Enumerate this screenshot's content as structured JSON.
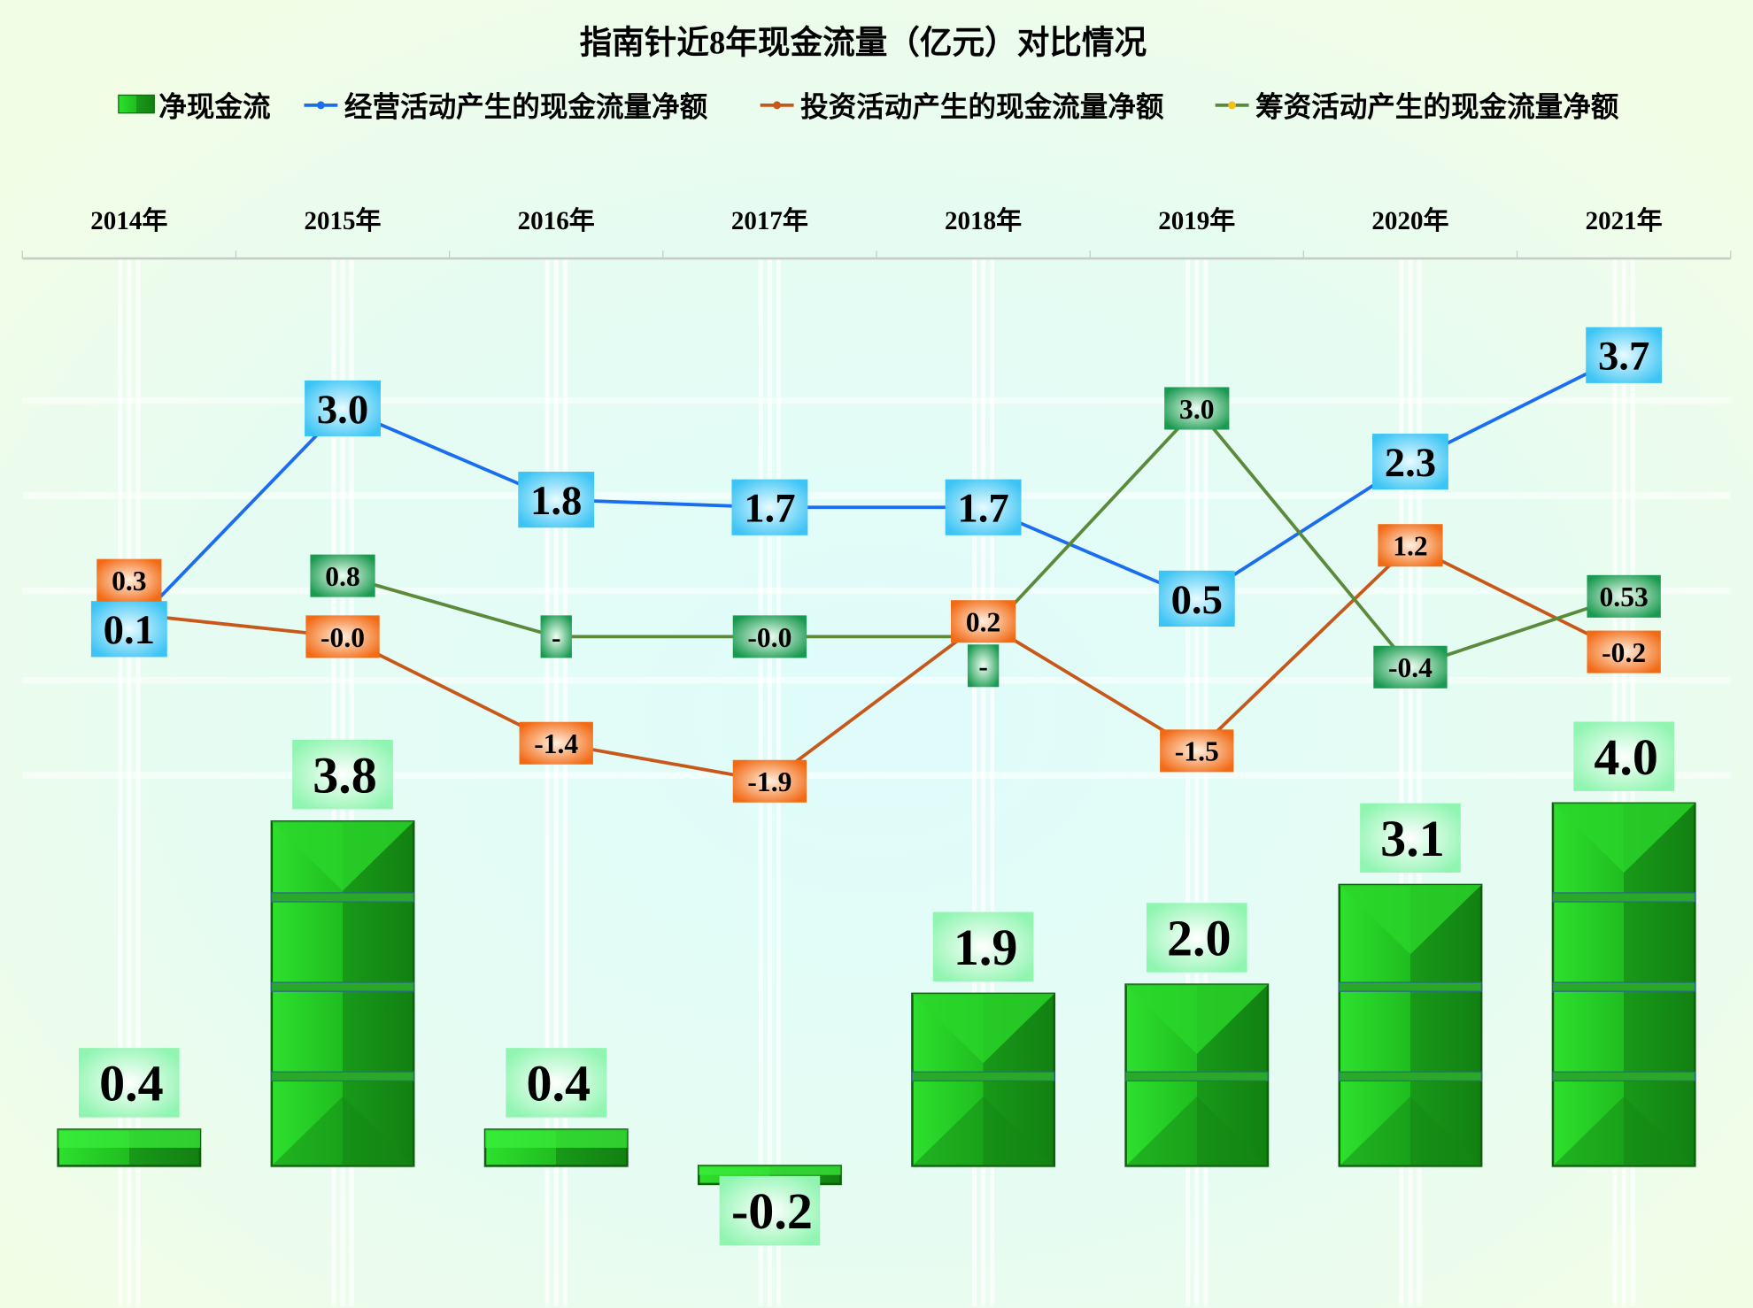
{
  "chart_data": {
    "type": "bar+line",
    "title": "指南针近8年现金流量（亿元）对比情况",
    "categories": [
      "2014年",
      "2015年",
      "2016年",
      "2017年",
      "2018年",
      "2019年",
      "2020年",
      "2021年"
    ],
    "legend_position": "top",
    "grid": false,
    "series": [
      {
        "name": "净现金流",
        "type": "bar",
        "color": "#22c322",
        "values": [
          0.4,
          3.8,
          0.4,
          -0.2,
          1.9,
          2.0,
          3.1,
          4.0
        ],
        "labels": [
          "0.4",
          "3.8",
          "0.4",
          "-0.2",
          "1.9",
          "2.0",
          "3.1",
          "4.0"
        ]
      },
      {
        "name": "经营活动产生的现金流量净额",
        "type": "line",
        "color": "#1a6cf0",
        "label_color": "#3cc4f4",
        "values": [
          0.1,
          3.0,
          1.8,
          1.7,
          1.7,
          0.5,
          2.3,
          3.7
        ],
        "labels": [
          "0.1",
          "3.0",
          "1.8",
          "1.7",
          "1.7",
          "0.5",
          "2.3",
          "3.7"
        ]
      },
      {
        "name": "投资活动产生的现金流量净额",
        "type": "line",
        "color": "#c8581a",
        "label_color": "#f26a14",
        "values": [
          0.3,
          -0.0,
          -1.4,
          -1.9,
          0.2,
          -1.5,
          1.2,
          -0.2
        ],
        "labels": [
          "0.3",
          "-0.0",
          "-1.4",
          "-1.9",
          "0.2",
          "-1.5",
          "1.2",
          "-0.2"
        ]
      },
      {
        "name": "筹资活动产生的现金流量净额",
        "type": "line",
        "color": "#5a8a3a",
        "label_color": "#1a9a50",
        "marker_color": "#f0c020",
        "values": [
          null,
          0.8,
          0,
          -0.0,
          0,
          3.0,
          -0.4,
          0.53
        ],
        "labels": [
          null,
          "0.8",
          "-",
          "-0.0",
          "-",
          "3.0",
          "-0.4",
          "0.53"
        ]
      }
    ]
  }
}
